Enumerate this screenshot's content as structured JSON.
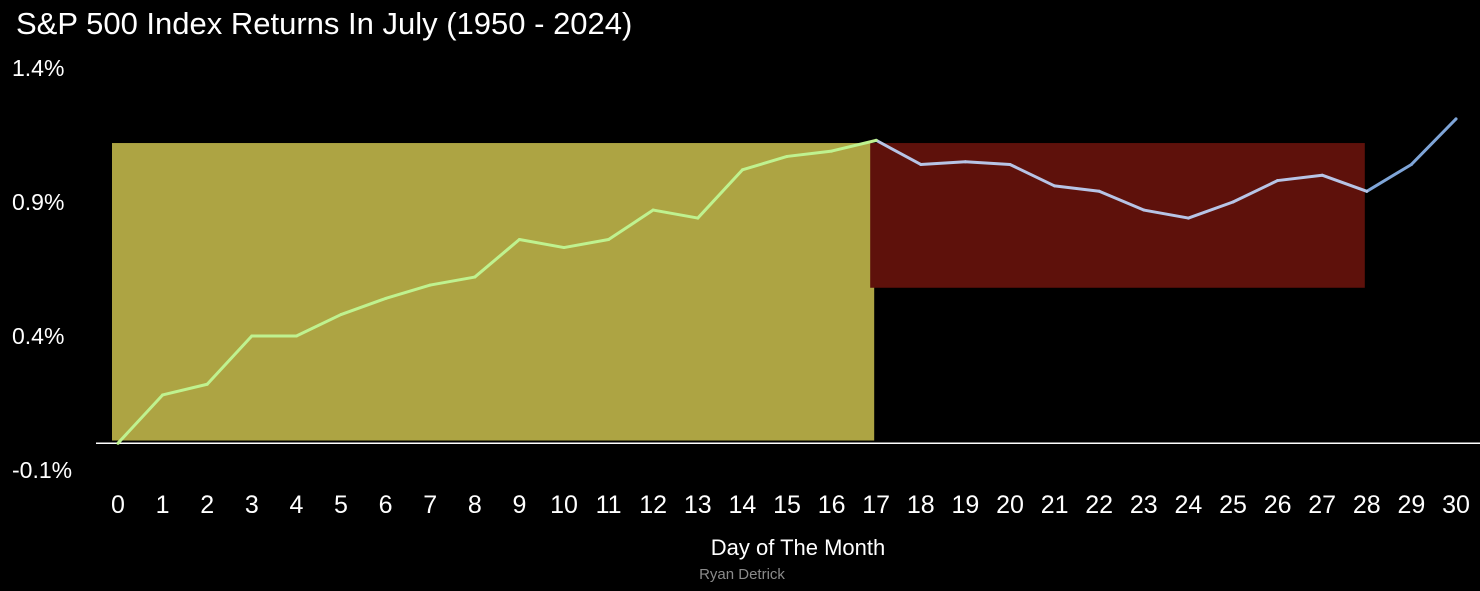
{
  "chart_data": {
    "type": "line",
    "title": "S&P 500 Index Returns In July (1950 - 2024)",
    "xlabel": "Day of The Month",
    "ylabel": "",
    "ylim": [
      -0.1,
      1.4
    ],
    "xlim": [
      0,
      30
    ],
    "y_ticks": [
      "1.4%",
      "0.9%",
      "0.4%",
      "-0.1%"
    ],
    "y_tick_values": [
      1.4,
      0.9,
      0.4,
      -0.1
    ],
    "x": [
      0,
      1,
      2,
      3,
      4,
      5,
      6,
      7,
      8,
      9,
      10,
      11,
      12,
      13,
      14,
      15,
      16,
      17,
      18,
      19,
      20,
      21,
      22,
      23,
      24,
      25,
      26,
      27,
      28,
      29,
      30
    ],
    "series": [
      {
        "values": [
          0.0,
          0.18,
          0.22,
          0.4,
          0.4,
          0.48,
          0.54,
          0.59,
          0.62,
          0.76,
          0.73,
          0.76,
          0.87,
          0.84,
          1.02,
          1.07,
          1.09,
          1.13,
          1.04,
          1.05,
          1.04,
          0.96,
          0.94,
          0.87,
          0.84,
          0.9,
          0.98,
          1.0,
          0.94,
          1.04,
          1.21
        ]
      }
    ],
    "highlight_bands": [
      {
        "x_range": [
          0,
          17
        ],
        "y_range": [
          0.01,
          1.12
        ],
        "color": "#ada443"
      },
      {
        "x_range": [
          17,
          28
        ],
        "y_range": [
          0.58,
          1.12
        ],
        "color": "#5e110b"
      }
    ],
    "colors": {
      "background": "#000000",
      "line_rising": "#bff28f",
      "line_flat": "#b7c4e6",
      "line_end": "#7fa5d8",
      "baseline": "#ffffff"
    },
    "grid": false,
    "legend": "none"
  },
  "credit": "Ryan Detrick"
}
